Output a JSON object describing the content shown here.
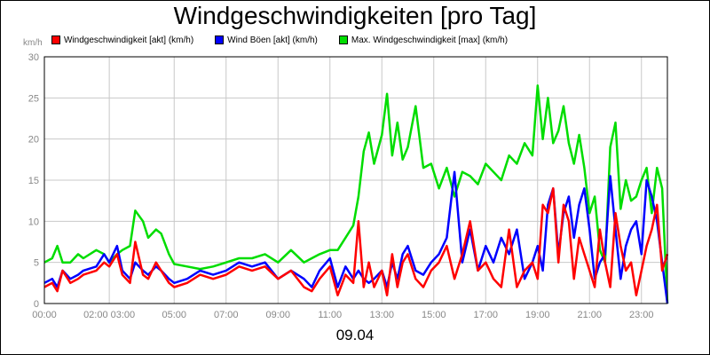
{
  "title": "Windgeschwindigkeiten [pro Tag]",
  "unit_label": "km/h",
  "date_label": "09.04",
  "colors": {
    "akt": "#ff0000",
    "boeen": "#0000ff",
    "max": "#00dd00",
    "grid": "#c8c8c8",
    "axis_text": "#888888"
  },
  "chart_data": {
    "type": "line",
    "title": "Windgeschwindigkeiten [pro Tag]",
    "xlabel": "09.04",
    "ylabel": "km/h",
    "ylim": [
      0,
      30
    ],
    "xlim": [
      0,
      24
    ],
    "grid": true,
    "legend_position": "top",
    "y_ticks": [
      "0",
      "5",
      "10",
      "15",
      "20",
      "25",
      "30"
    ],
    "x_ticks": [
      {
        "x": 0,
        "label": "00:00"
      },
      {
        "x": 2.5,
        "label": "02:00 03:00"
      },
      {
        "x": 5,
        "label": "05:00"
      },
      {
        "x": 7,
        "label": "07:00"
      },
      {
        "x": 9,
        "label": "09:00"
      },
      {
        "x": 11,
        "label": "11:00"
      },
      {
        "x": 13,
        "label": "13:00"
      },
      {
        "x": 15,
        "label": "15:00"
      },
      {
        "x": 17,
        "label": "17:00"
      },
      {
        "x": 19,
        "label": "19:00"
      },
      {
        "x": 21,
        "label": "21:00"
      },
      {
        "x": 23,
        "label": "23:00"
      }
    ],
    "series": [
      {
        "name": "Max. Windgeschwindigkeit [max] (km/h)",
        "color": "#00dd00",
        "x": [
          0,
          0.3,
          0.5,
          0.7,
          1,
          1.3,
          1.5,
          2,
          2.3,
          2.5,
          2.8,
          3,
          3.3,
          3.5,
          3.8,
          4,
          4.3,
          4.5,
          4.8,
          5,
          5.5,
          6,
          6.5,
          7,
          7.5,
          8,
          8.5,
          9,
          9.5,
          10,
          10.3,
          10.6,
          11,
          11.3,
          11.6,
          11.9,
          12.1,
          12.3,
          12.5,
          12.7,
          13,
          13.2,
          13.4,
          13.6,
          13.8,
          14,
          14.3,
          14.6,
          14.9,
          15.2,
          15.5,
          15.8,
          16.1,
          16.4,
          16.7,
          17,
          17.3,
          17.6,
          17.9,
          18.2,
          18.5,
          18.8,
          19,
          19.2,
          19.4,
          19.6,
          19.8,
          20,
          20.2,
          20.4,
          20.6,
          20.8,
          21,
          21.2,
          21.4,
          21.6,
          21.8,
          22,
          22.2,
          22.4,
          22.6,
          22.8,
          23,
          23.2,
          23.4,
          23.6,
          23.8,
          24
        ],
        "values": [
          5,
          5.5,
          7,
          5,
          5,
          6,
          5.5,
          6.5,
          6,
          5,
          6,
          6.5,
          7,
          11.3,
          10,
          8,
          9,
          8.5,
          6,
          4.8,
          4.5,
          4.2,
          4.5,
          5,
          5.5,
          5.5,
          6,
          5,
          6.5,
          5,
          5.5,
          6,
          6.5,
          6.5,
          8,
          9.5,
          13,
          18.5,
          20.8,
          17,
          20.5,
          25.5,
          18,
          22,
          17.5,
          19,
          24,
          16.5,
          17,
          14,
          16.5,
          13,
          16,
          15.5,
          14.5,
          17,
          16,
          15,
          18,
          17,
          19.5,
          18,
          26.5,
          20,
          25,
          19.5,
          21,
          24,
          19.5,
          17,
          20.5,
          16.5,
          11,
          13,
          6.5,
          5,
          19,
          22,
          11.5,
          15,
          12.5,
          13,
          15,
          16.5,
          11,
          16.5,
          14,
          0
        ]
      },
      {
        "name": "Wind Böen [akt] (km/h)",
        "color": "#0000ff",
        "x": [
          0,
          0.3,
          0.5,
          0.7,
          1,
          1.3,
          1.5,
          2,
          2.3,
          2.5,
          2.8,
          3,
          3.3,
          3.5,
          3.8,
          4,
          4.3,
          4.5,
          4.8,
          5,
          5.5,
          6,
          6.5,
          7,
          7.5,
          8,
          8.5,
          9,
          9.5,
          10,
          10.3,
          10.6,
          11,
          11.3,
          11.6,
          11.9,
          12.1,
          12.3,
          12.5,
          12.7,
          13,
          13.2,
          13.4,
          13.6,
          13.8,
          14,
          14.3,
          14.6,
          14.9,
          15.2,
          15.5,
          15.8,
          16.1,
          16.4,
          16.7,
          17,
          17.3,
          17.6,
          17.9,
          18.2,
          18.5,
          18.8,
          19,
          19.2,
          19.4,
          19.6,
          19.8,
          20,
          20.2,
          20.4,
          20.6,
          20.8,
          21,
          21.2,
          21.4,
          21.6,
          21.8,
          22,
          22.2,
          22.4,
          22.6,
          22.8,
          23,
          23.2,
          23.4,
          23.6,
          23.8,
          24
        ],
        "values": [
          2.5,
          3,
          2,
          4,
          3,
          3.5,
          4,
          4.5,
          6,
          5,
          7,
          4,
          3,
          5,
          4,
          3.5,
          4.5,
          4,
          3,
          2.5,
          3,
          4,
          3.5,
          4,
          5,
          4.5,
          5,
          3,
          4,
          3,
          2,
          4,
          5.5,
          2,
          4.5,
          3,
          4,
          3,
          2.5,
          3,
          4,
          2,
          5,
          3,
          6,
          7,
          4,
          3.5,
          5,
          6,
          8,
          16,
          5,
          9,
          4,
          7,
          5,
          8,
          6,
          9,
          3,
          5,
          7,
          4,
          12,
          14,
          6,
          11,
          13,
          8,
          12,
          14,
          9,
          3,
          5,
          6,
          15.5,
          9,
          3,
          7,
          9,
          10,
          6,
          15,
          13,
          10,
          5,
          0
        ]
      },
      {
        "name": "Windgeschwindigkeit [akt] (km/h)",
        "color": "#ff0000",
        "x": [
          0,
          0.3,
          0.5,
          0.7,
          1,
          1.3,
          1.5,
          2,
          2.3,
          2.5,
          2.8,
          3,
          3.3,
          3.5,
          3.8,
          4,
          4.3,
          4.5,
          4.8,
          5,
          5.5,
          6,
          6.5,
          7,
          7.5,
          8,
          8.5,
          9,
          9.5,
          10,
          10.3,
          10.6,
          11,
          11.3,
          11.6,
          11.9,
          12.1,
          12.3,
          12.5,
          12.7,
          13,
          13.2,
          13.4,
          13.6,
          13.8,
          14,
          14.3,
          14.6,
          14.9,
          15.2,
          15.5,
          15.8,
          16.1,
          16.4,
          16.7,
          17,
          17.3,
          17.6,
          17.9,
          18.2,
          18.5,
          18.8,
          19,
          19.2,
          19.4,
          19.6,
          19.8,
          20,
          20.2,
          20.4,
          20.6,
          20.8,
          21,
          21.2,
          21.4,
          21.6,
          21.8,
          22,
          22.2,
          22.4,
          22.6,
          22.8,
          23,
          23.2,
          23.4,
          23.6,
          23.8,
          24
        ],
        "values": [
          2,
          2.5,
          1.5,
          4,
          2.5,
          3,
          3.5,
          4,
          5,
          4.5,
          6,
          3.5,
          2.5,
          7.5,
          3.5,
          3,
          5,
          4,
          2.5,
          2,
          2.5,
          3.5,
          3,
          3.5,
          4.5,
          4,
          4.5,
          3,
          4,
          2,
          1.5,
          3,
          4.5,
          1,
          3.5,
          2.5,
          10,
          2,
          5,
          2,
          4,
          1,
          6,
          2,
          5,
          6,
          3,
          2,
          4,
          5,
          7,
          3,
          6,
          10,
          4,
          5,
          3,
          2,
          9,
          2,
          4,
          5,
          3,
          12,
          11,
          14,
          5,
          12,
          10,
          3,
          8,
          6,
          4,
          2,
          9,
          5,
          2,
          11,
          7,
          4,
          5,
          1,
          4,
          7,
          9,
          12,
          4,
          6
        ]
      }
    ]
  },
  "legend": [
    {
      "label": "Windgeschwindigkeit [akt] (km/h)",
      "color": "#ff0000"
    },
    {
      "label": "Wind Böen [akt] (km/h)",
      "color": "#0000ff"
    },
    {
      "label": "Max. Windgeschwindigkeit [max] (km/h)",
      "color": "#00dd00"
    }
  ]
}
